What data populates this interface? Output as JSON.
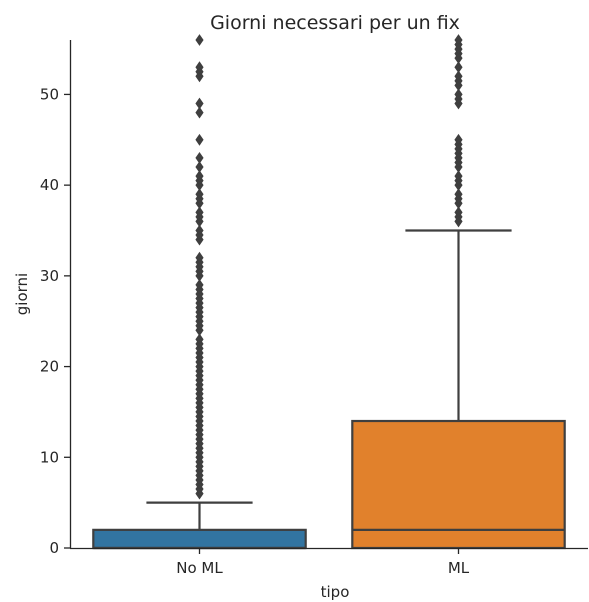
{
  "chart_data": {
    "type": "box",
    "title": "Giorni necessari per un fix",
    "xlabel": "tipo",
    "ylabel": "giorni",
    "ylim": [
      0,
      56
    ],
    "yticks": [
      0,
      10,
      20,
      30,
      40,
      50
    ],
    "categories": [
      "No ML",
      "ML"
    ],
    "grid": false,
    "legend": "none",
    "boxes": [
      {
        "category": "No ML",
        "color": "#3274a1",
        "q1": 0,
        "median": 0,
        "q3": 2,
        "whisker_low": 0,
        "whisker_high": 5,
        "outliers": [
          6,
          6.5,
          7,
          7.5,
          8,
          8.5,
          9,
          9.5,
          10,
          10.5,
          11,
          11.5,
          12,
          12.5,
          13,
          13.5,
          14,
          14.5,
          15,
          15.5,
          16,
          16.5,
          17,
          17.5,
          18,
          18.5,
          19,
          19.5,
          20,
          20.5,
          21,
          21.5,
          22,
          22.5,
          23,
          24,
          24.5,
          25,
          25.5,
          26,
          26.5,
          27,
          27.5,
          28,
          28.5,
          29,
          30,
          30.5,
          31,
          31.5,
          32,
          34,
          34.5,
          35,
          36,
          36.5,
          37,
          38,
          38.5,
          39,
          40,
          40.5,
          41,
          42,
          43,
          45,
          48,
          49,
          52,
          52.5,
          53,
          56
        ]
      },
      {
        "category": "ML",
        "color": "#e1812c",
        "q1": 0,
        "median": 2,
        "q3": 14,
        "whisker_low": 0,
        "whisker_high": 35,
        "outliers": [
          36,
          36.5,
          37,
          38,
          38.5,
          39,
          40,
          40.5,
          41,
          42,
          42.5,
          43,
          43.5,
          44,
          44.5,
          45,
          49,
          49.5,
          50,
          51,
          51.5,
          52,
          53,
          54,
          54.5,
          55,
          55.5,
          56
        ]
      }
    ]
  }
}
